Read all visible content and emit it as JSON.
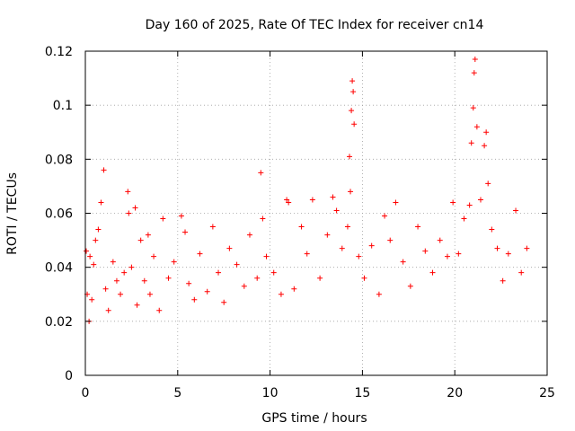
{
  "chart_data": {
    "type": "scatter",
    "title": "Day 160 of 2025, Rate Of TEC Index for receiver cn14",
    "xlabel": "GPS time / hours",
    "ylabel": "ROTI / TECUs",
    "xlim": [
      0,
      25
    ],
    "ylim": [
      0,
      0.12
    ],
    "xticks": [
      0,
      5,
      10,
      15,
      20,
      25
    ],
    "xtick_labels": [
      "0",
      "5",
      "10",
      "15",
      "20",
      "25"
    ],
    "yticks": [
      0,
      0.02,
      0.04,
      0.06,
      0.08,
      0.1,
      0.12
    ],
    "ytick_labels": [
      "0",
      "0.02",
      "0.04",
      "0.06",
      "0.08",
      "0.1",
      "0.12"
    ],
    "grid": true,
    "marker": "+",
    "series": [
      {
        "name": "ROTI",
        "color": "#ff0000",
        "x": [
          0.05,
          0.1,
          0.2,
          0.25,
          0.35,
          0.45,
          0.55,
          0.7,
          0.85,
          1.0,
          1.1,
          1.25,
          1.5,
          1.7,
          1.9,
          2.1,
          2.3,
          2.35,
          2.5,
          2.7,
          2.8,
          3.0,
          3.2,
          3.4,
          3.5,
          3.7,
          4.0,
          4.2,
          4.5,
          4.8,
          5.2,
          5.4,
          5.6,
          5.9,
          6.2,
          6.6,
          6.9,
          7.2,
          7.5,
          7.8,
          8.2,
          8.6,
          8.9,
          9.3,
          9.5,
          9.6,
          9.8,
          10.2,
          10.6,
          10.9,
          11.0,
          11.3,
          11.7,
          12.0,
          12.3,
          12.7,
          13.1,
          13.4,
          13.6,
          13.9,
          14.2,
          14.3,
          14.35,
          14.4,
          14.45,
          14.5,
          14.55,
          14.8,
          15.1,
          15.5,
          15.9,
          16.2,
          16.5,
          16.8,
          17.2,
          17.6,
          18.0,
          18.4,
          18.8,
          19.2,
          19.6,
          19.9,
          20.2,
          20.5,
          20.8,
          20.9,
          21.0,
          21.05,
          21.1,
          21.2,
          21.4,
          21.6,
          21.7,
          21.8,
          22.0,
          22.3,
          22.6,
          22.9,
          23.3,
          23.6,
          23.9
        ],
        "y": [
          0.046,
          0.03,
          0.02,
          0.044,
          0.028,
          0.041,
          0.05,
          0.054,
          0.064,
          0.076,
          0.032,
          0.024,
          0.042,
          0.035,
          0.03,
          0.038,
          0.068,
          0.06,
          0.04,
          0.062,
          0.026,
          0.05,
          0.035,
          0.052,
          0.03,
          0.044,
          0.024,
          0.058,
          0.036,
          0.042,
          0.059,
          0.053,
          0.034,
          0.028,
          0.045,
          0.031,
          0.055,
          0.038,
          0.027,
          0.047,
          0.041,
          0.033,
          0.052,
          0.036,
          0.075,
          0.058,
          0.044,
          0.038,
          0.03,
          0.065,
          0.064,
          0.032,
          0.055,
          0.045,
          0.065,
          0.036,
          0.052,
          0.066,
          0.061,
          0.047,
          0.055,
          0.081,
          0.068,
          0.098,
          0.109,
          0.105,
          0.093,
          0.044,
          0.036,
          0.048,
          0.03,
          0.059,
          0.05,
          0.064,
          0.042,
          0.033,
          0.055,
          0.046,
          0.038,
          0.05,
          0.044,
          0.064,
          0.045,
          0.058,
          0.063,
          0.086,
          0.099,
          0.112,
          0.117,
          0.092,
          0.065,
          0.085,
          0.09,
          0.071,
          0.054,
          0.047,
          0.035,
          0.045,
          0.061,
          0.038,
          0.047
        ]
      }
    ]
  }
}
